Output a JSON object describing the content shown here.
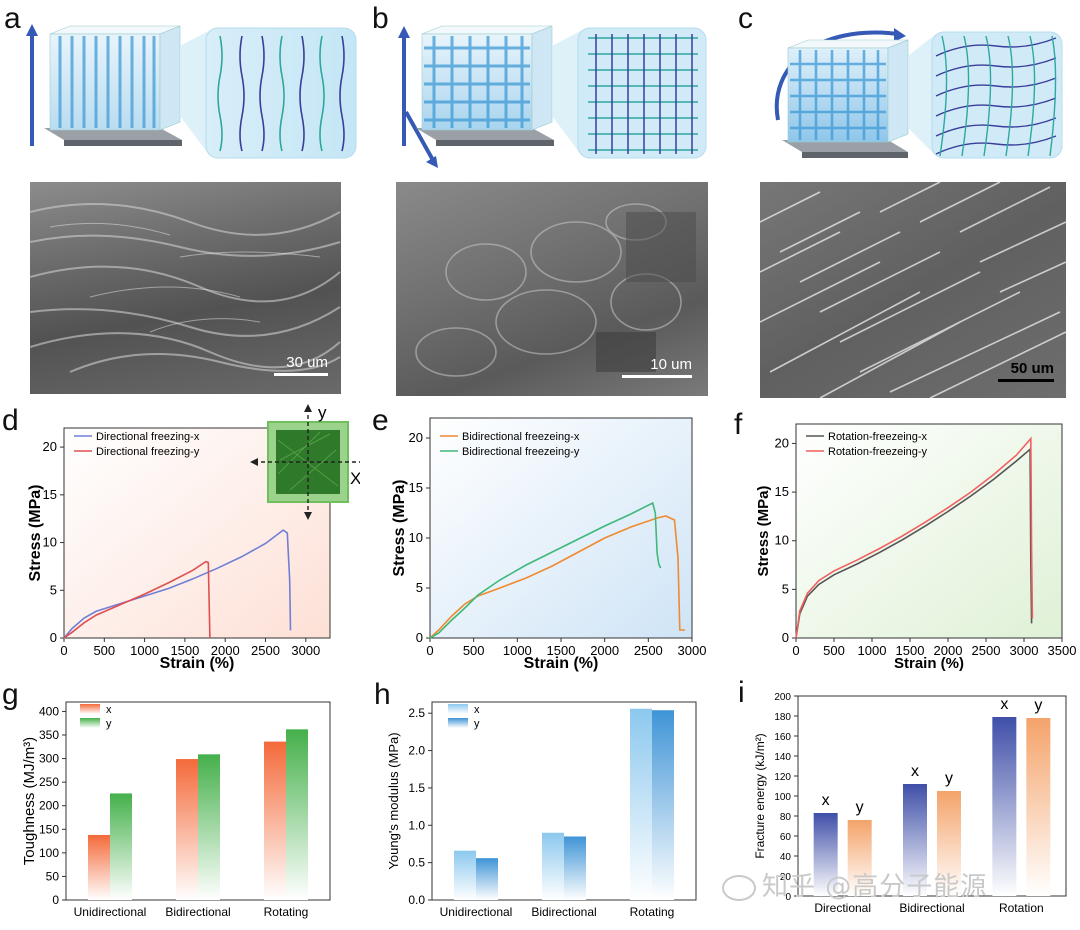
{
  "panels": {
    "a": "a",
    "b": "b",
    "c": "c",
    "d": "d",
    "e": "e",
    "f": "f",
    "g": "g",
    "h": "h",
    "i": "i"
  },
  "scale_bars": {
    "a": "30 um",
    "b": "10 um",
    "c": "50 um"
  },
  "inset_axes": {
    "x": "X",
    "y": "y"
  },
  "watermark": "知乎 @高分子能源",
  "colors": {
    "blue_line": "#6f7fd6",
    "red_line": "#e05050",
    "orange_line": "#f08a30",
    "green_line": "#3fb87a",
    "gray_line": "#555555",
    "pink_line": "#f06060"
  },
  "chart_data": [
    {
      "id": "d",
      "type": "line",
      "xlabel": "Strain (%)",
      "ylabel": "Stress (MPa)",
      "xlim": [
        0,
        3300
      ],
      "ylim": [
        0,
        22
      ],
      "xticks": [
        "0",
        "500",
        "1000",
        "1500",
        "2000",
        "2500",
        "3000"
      ],
      "yticks": [
        "0",
        "5",
        "10",
        "15",
        "20"
      ],
      "series": [
        {
          "name": "Directional freezing-x",
          "color": "#6f7fd6",
          "x": [
            0,
            100,
            250,
            400,
            700,
            1000,
            1300,
            1600,
            1900,
            2200,
            2500,
            2720,
            2770,
            2800,
            2810
          ],
          "y": [
            0,
            1.0,
            2.1,
            2.8,
            3.6,
            4.4,
            5.2,
            6.2,
            7.3,
            8.5,
            9.9,
            11.3,
            11.0,
            6.0,
            0.8
          ]
        },
        {
          "name": "Directional freezing-y",
          "color": "#e05050",
          "x": [
            0,
            100,
            250,
            400,
            700,
            1000,
            1300,
            1600,
            1760,
            1790,
            1800,
            1810
          ],
          "y": [
            0,
            0.6,
            1.6,
            2.4,
            3.5,
            4.6,
            5.8,
            7.1,
            8.0,
            7.9,
            4.0,
            0
          ]
        }
      ]
    },
    {
      "id": "e",
      "type": "line",
      "xlabel": "Strain (%)",
      "ylabel": "Stress (MPa)",
      "xlim": [
        0,
        3000
      ],
      "ylim": [
        0,
        22
      ],
      "xticks": [
        "0",
        "500",
        "1000",
        "1500",
        "2000",
        "2500",
        "3000"
      ],
      "yticks": [
        "0",
        "5",
        "10",
        "15",
        "20"
      ],
      "series": [
        {
          "name": "Bidirectional freezeing-x",
          "color": "#f08a30",
          "x": [
            0,
            100,
            250,
            400,
            550,
            800,
            1100,
            1400,
            1700,
            2000,
            2300,
            2600,
            2700,
            2800,
            2840,
            2860,
            2880,
            2920
          ],
          "y": [
            0,
            0.8,
            2.2,
            3.4,
            4.2,
            5.0,
            6.0,
            7.2,
            8.6,
            10.0,
            11.1,
            12.0,
            12.2,
            11.8,
            8.0,
            0.8,
            0.8,
            0.8
          ]
        },
        {
          "name": "Bidirectional freezeing-y",
          "color": "#3fb87a",
          "x": [
            0,
            100,
            250,
            400,
            550,
            800,
            1100,
            1400,
            1700,
            2000,
            2300,
            2550,
            2580,
            2600,
            2620,
            2640
          ],
          "y": [
            0,
            0.5,
            1.8,
            3.0,
            4.3,
            5.8,
            7.3,
            8.6,
            9.9,
            11.2,
            12.4,
            13.5,
            12.5,
            8.5,
            7.4,
            7.0
          ]
        }
      ]
    },
    {
      "id": "f",
      "type": "line",
      "xlabel": "Strain (%)",
      "ylabel": "Stress (MPa)",
      "xlim": [
        0,
        3500
      ],
      "ylim": [
        0,
        22
      ],
      "xticks": [
        "0",
        "500",
        "1000",
        "1500",
        "2000",
        "2500",
        "3000",
        "3500"
      ],
      "yticks": [
        "0",
        "5",
        "10",
        "15",
        "20"
      ],
      "series": [
        {
          "name": "Rotation-freezeing-x",
          "color": "#555555",
          "x": [
            0,
            50,
            150,
            300,
            500,
            800,
            1100,
            1400,
            1700,
            2000,
            2300,
            2600,
            2900,
            3080,
            3090,
            3100
          ],
          "y": [
            0,
            2.5,
            4.3,
            5.5,
            6.5,
            7.6,
            8.8,
            10.1,
            11.5,
            13.0,
            14.6,
            16.3,
            18.2,
            19.4,
            8.0,
            1.5
          ]
        },
        {
          "name": "Rotation-freezeing-y",
          "color": "#f06060",
          "x": [
            0,
            50,
            150,
            300,
            500,
            800,
            1100,
            1400,
            1700,
            2000,
            2300,
            2600,
            2900,
            3090,
            3100,
            3110
          ],
          "y": [
            0,
            2.8,
            4.6,
            5.9,
            6.9,
            8.0,
            9.2,
            10.5,
            11.9,
            13.4,
            15.0,
            16.8,
            18.8,
            20.5,
            9.0,
            2.0
          ]
        }
      ]
    },
    {
      "id": "g",
      "type": "bar",
      "ylabel": "Toughness (MJ/m³)",
      "ylim": [
        0,
        420
      ],
      "yticks": [
        "0",
        "50",
        "100",
        "150",
        "200",
        "250",
        "300",
        "350",
        "400"
      ],
      "categories": [
        "Unidirectional",
        "Bidirectional",
        "Rotating"
      ],
      "series": [
        {
          "name": "x",
          "color": "#f46a3a",
          "values": [
            138,
            299,
            336
          ]
        },
        {
          "name": "y",
          "color": "#44b04a",
          "values": [
            226,
            309,
            362
          ]
        }
      ]
    },
    {
      "id": "h",
      "type": "bar",
      "ylabel": "Young's modulus (MPa)",
      "ylim": [
        0,
        2.65
      ],
      "yticks": [
        "0.0",
        "0.5",
        "1.0",
        "1.5",
        "2.0",
        "2.5"
      ],
      "categories": [
        "Unidirectional",
        "Bidirectional",
        "Rotating"
      ],
      "series": [
        {
          "name": "x",
          "color": "#8cc8ee",
          "values": [
            0.66,
            0.9,
            2.56
          ]
        },
        {
          "name": "y",
          "color": "#3f94d6",
          "values": [
            0.56,
            0.85,
            2.54
          ]
        }
      ]
    },
    {
      "id": "i",
      "type": "bar",
      "ylabel": "Fracture energy (kJ/m²)",
      "ylim": [
        0,
        200
      ],
      "yticks": [
        "0",
        "20",
        "40",
        "60",
        "80",
        "100",
        "120",
        "140",
        "160",
        "180",
        "200"
      ],
      "categories": [
        "Directional",
        "Bidirectional",
        "Rotation"
      ],
      "bar_labels": [
        "x",
        "y"
      ],
      "series": [
        {
          "name": "x",
          "color": "#3f4fa8",
          "values": [
            83,
            112,
            179
          ]
        },
        {
          "name": "y",
          "color": "#f4a36a",
          "values": [
            76,
            105,
            178
          ]
        }
      ]
    }
  ]
}
